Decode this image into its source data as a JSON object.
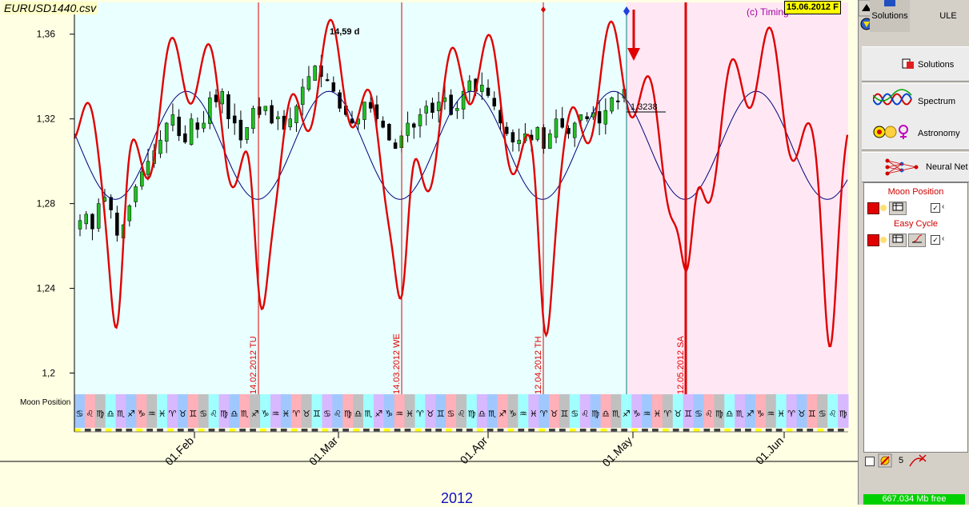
{
  "window": {
    "file_title": "EURUSD1440.csv",
    "date_box": "15.06.2012 F",
    "copyright": "(c) Timing"
  },
  "chart_data": {
    "type": "line",
    "title": "EURUSD1440.csv",
    "y_ticks": [
      "1,36",
      "1,32",
      "1,28",
      "1,24",
      "1,2"
    ],
    "y_values": [
      1.36,
      1.32,
      1.28,
      1.24,
      1.2
    ],
    "ylim": [
      1.19,
      1.375
    ],
    "x_ticks": [
      "01.Feb",
      "01.Mar",
      "01.Apr",
      "01.May",
      "01.Jun"
    ],
    "xlabel": "2012",
    "series": [
      {
        "name": "EURUSD daily candles",
        "kind": "candlestick"
      },
      {
        "name": "Easy Cycle",
        "kind": "line",
        "color": "#e00000"
      },
      {
        "name": "Spectrum cycle 14,59 d",
        "kind": "line",
        "color": "#000080"
      }
    ],
    "annotations": {
      "cycle_label": "14,59 d",
      "last_price": "1.3238",
      "vertical_markers": [
        "14.02.2012 TU",
        "14.03.2012 WE",
        "12.04.2012 TH",
        "12.05.2012 SA"
      ]
    },
    "moon_position_label": "Moon Position",
    "moon_glyphs": [
      "♋",
      "♌",
      "♍",
      "♎",
      "♏",
      "♐",
      "♑",
      "♒",
      "♓",
      "♈",
      "♉",
      "♊",
      "♋",
      "♌",
      "♍",
      "♎",
      "♏",
      "♐",
      "♑",
      "♒",
      "♓",
      "♈",
      "♉",
      "♊",
      "♋",
      "♌",
      "♍",
      "♎",
      "♏",
      "♐",
      "♑",
      "♒",
      "♓",
      "♈",
      "♉",
      "♊",
      "♋",
      "♌",
      "♍",
      "♎",
      "♏",
      "♐",
      "♑",
      "♒",
      "♓",
      "♈",
      "♉",
      "♊",
      "♋",
      "♌",
      "♍",
      "♎",
      "♏",
      "♐",
      "♑",
      "♒",
      "♓",
      "♈",
      "♉",
      "♊",
      "♋",
      "♌",
      "♍",
      "♎",
      "♏",
      "♐",
      "♑",
      "♒",
      "♓",
      "♈",
      "♉",
      "♊",
      "♋",
      "♌",
      "♍",
      "♎",
      "♏",
      "♐",
      "♑",
      "♒",
      "♓",
      "♈",
      "♉",
      "♊",
      "♋",
      "♌",
      "♍",
      "♎",
      "♏",
      "♐",
      "♑",
      "♒",
      "♓",
      "♈",
      "♉",
      "♊",
      "♋",
      "♌",
      "♍",
      "♎",
      "♏",
      "♐",
      "♑",
      "♒",
      "♓",
      "♈",
      "♉",
      "♊",
      "♋",
      "♌",
      "♍",
      "♎",
      "♏",
      "♐",
      "♑",
      "♒",
      "♓",
      "♈",
      "♉",
      "♊",
      "♋",
      "♌",
      "♍",
      "♎",
      "♏",
      "♐",
      "♑",
      "♒",
      "♓",
      "♈",
      "♉",
      "♊"
    ]
  },
  "toolbar": {
    "solutions_label": "Solutions",
    "ule_label": "ULE"
  },
  "sidebar": {
    "solutions": "Solutions",
    "spectrum": "Spectrum",
    "astronomy": "Astronomy",
    "neural_net": "Neural Net",
    "layers": [
      {
        "title": "Moon Position"
      },
      {
        "title": "Easy Cycle"
      }
    ],
    "bottom_count": "5",
    "memory": "667.034 Mb free"
  }
}
